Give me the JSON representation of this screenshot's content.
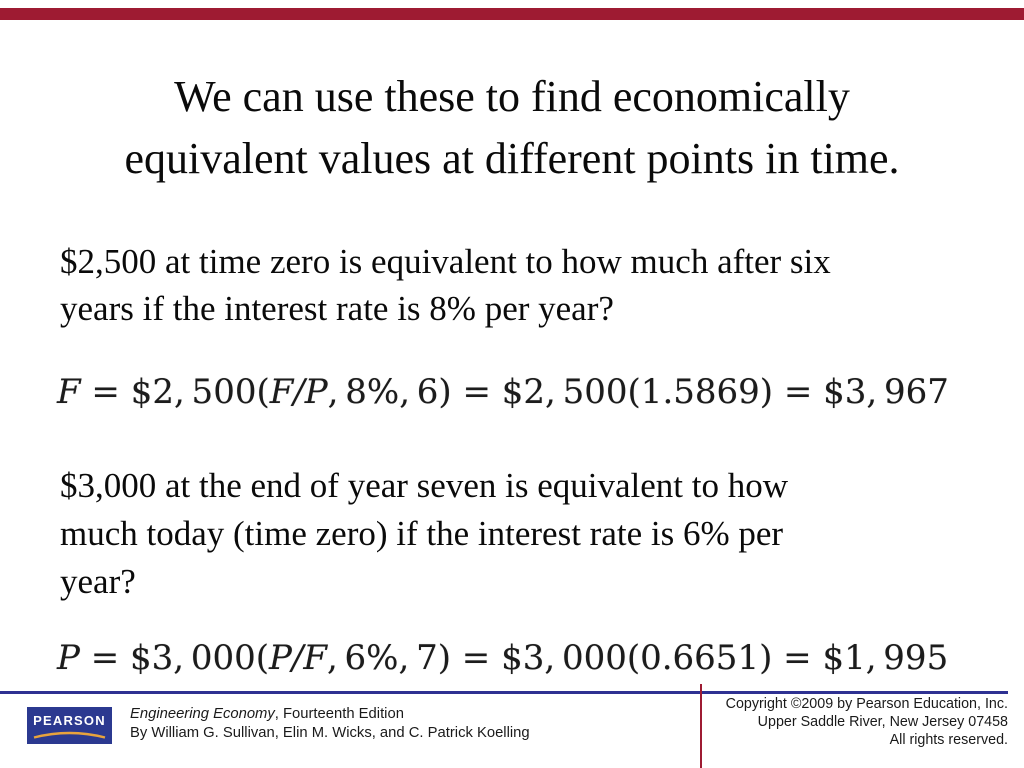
{
  "slide": {
    "background_color": "#FFFFFF",
    "top_bar_color": "#9E1B32"
  },
  "title": {
    "lines": [
      "We can use these to find economically",
      "equivalent values at different points in time."
    ]
  },
  "body": {
    "question1": {
      "lines": [
        "$2,500 at time zero is equivalent to how much after six",
        "years if the interest rate is 8% per year?"
      ]
    },
    "formula1": {
      "parts": [
        {
          "text": "F",
          "italic": true
        },
        {
          "text": " = $2, 500(",
          "italic": false
        },
        {
          "text": "F/P",
          "italic": true
        },
        {
          "text": ", 8%, 6) = $2, 500(1.5869) = $3, 967",
          "italic": false
        }
      ]
    },
    "question2": {
      "lines": [
        "$3,000 at the end of year seven is equivalent to how",
        "much today (time zero) if the interest rate is 6% per",
        "year?"
      ]
    },
    "formula2": {
      "parts": [
        {
          "text": "P",
          "italic": true
        },
        {
          "text": " = $3, 000(",
          "italic": false
        },
        {
          "text": "P/F",
          "italic": true
        },
        {
          "text": ", 6%, 7) = $3, 000(0.6651) = $1, 995",
          "italic": false
        }
      ]
    }
  },
  "footer": {
    "divider_color": "#2E3192",
    "accent_line_color": "#9E1B32",
    "logo": {
      "text": "PEARSON",
      "bg_color": "#2B3990",
      "swoosh_color": "#E8A33D"
    },
    "credits": {
      "title_parts": [
        {
          "text": "Engineering Economy",
          "italic": true
        },
        {
          "text": ", Fourteenth Edition",
          "italic": false
        }
      ],
      "authors": "By William G. Sullivan, Elin M. Wicks, and C. Patrick Koelling"
    },
    "copyright": {
      "lines": [
        "Copyright ©2009 by Pearson Education, Inc.",
        "Upper Saddle River, New Jersey 07458",
        "All rights reserved."
      ]
    }
  }
}
